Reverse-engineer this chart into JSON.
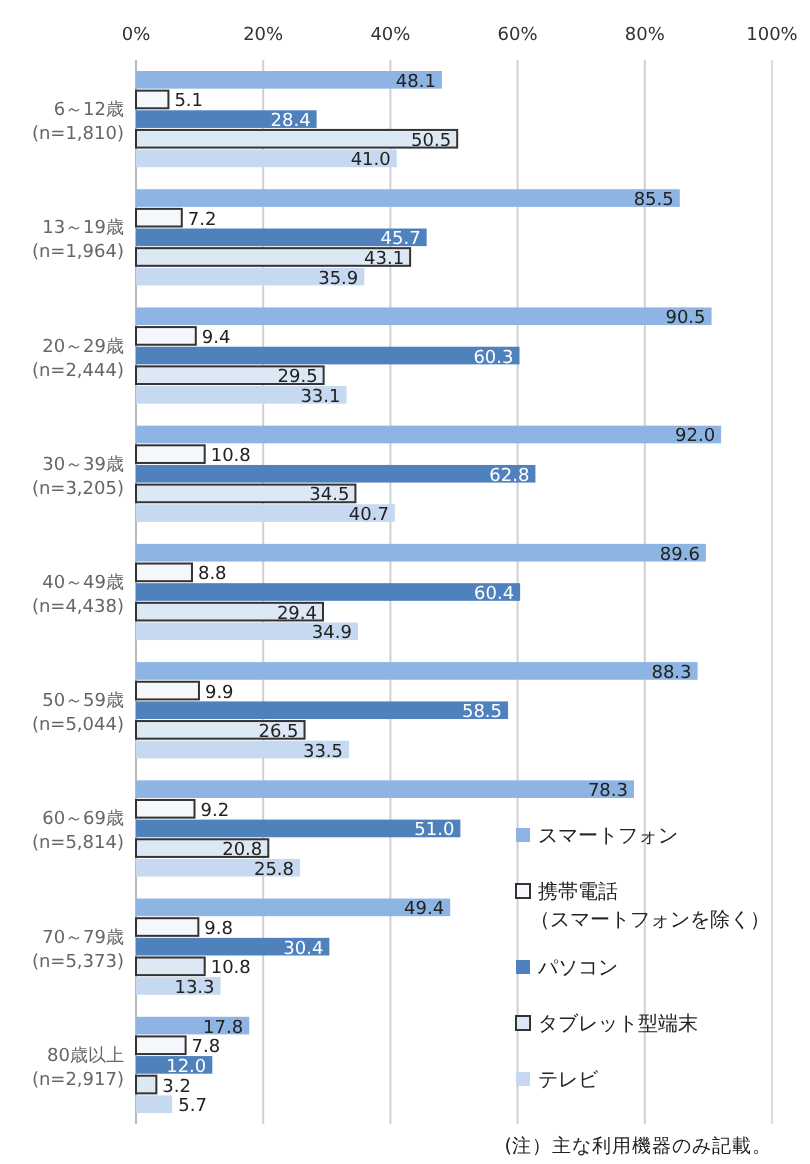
{
  "chart_data": {
    "type": "bar",
    "orientation": "horizontal",
    "categories": [
      "6～12歳\n(n=1,810)",
      "13～19歳\n(n=1,964)",
      "20～29歳\n(n=2,444)",
      "30～39歳\n(n=3,205)",
      "40～49歳\n(n=4,438)",
      "50～59歳\n(n=5,044)",
      "60～69歳\n(n=5,814)",
      "70～79歳\n(n=5,373)",
      "80歳以上\n(n=2,917)"
    ],
    "series": [
      {
        "name": "スマートフォン",
        "color": "#8db4e2",
        "values": [
          48.1,
          85.5,
          90.5,
          92.0,
          89.6,
          88.3,
          78.3,
          49.4,
          17.8
        ],
        "value_labels": [
          "48.1",
          "85.5",
          "90.5",
          "92.0",
          "89.6",
          "88.3",
          "78.3",
          "49.4",
          "17.8"
        ]
      },
      {
        "name": "携帯電話（スマートフォンを除く）",
        "color": "#f4f7fb",
        "values": [
          5.1,
          7.2,
          9.4,
          10.8,
          8.8,
          9.9,
          9.2,
          9.8,
          7.8
        ],
        "value_labels": [
          "5.1",
          "7.2",
          "9.4",
          "10.8",
          "8.8",
          "9.9",
          "9.2",
          "9.8",
          "7.8"
        ]
      },
      {
        "name": "パソコン",
        "color": "#4f81bd",
        "values": [
          28.4,
          45.7,
          60.3,
          62.8,
          60.4,
          58.5,
          51.0,
          30.4,
          12.0
        ],
        "value_labels": [
          "28.4",
          "45.7",
          "60.3",
          "62.8",
          "60.4",
          "58.5",
          "51.0",
          "30.4",
          "12.0"
        ]
      },
      {
        "name": "タブレット型端末",
        "color": "#dde8f5",
        "values": [
          50.5,
          43.1,
          29.5,
          34.5,
          29.4,
          26.5,
          20.8,
          10.8,
          3.2
        ],
        "value_labels": [
          "50.5",
          "43.1",
          "29.5",
          "34.5",
          "29.4",
          "26.5",
          "20.8",
          "10.8",
          "3.2"
        ]
      },
      {
        "name": "テレビ",
        "color": "#c6d9f0",
        "values": [
          41.0,
          35.9,
          33.1,
          40.7,
          34.9,
          33.5,
          25.8,
          13.3,
          5.7
        ],
        "value_labels": [
          "41.0",
          "35.9",
          "33.1",
          "40.7",
          "34.9",
          "33.5",
          "25.8",
          "13.3",
          "5.7"
        ]
      }
    ],
    "xlim": [
      0,
      100
    ],
    "xticks": [
      {
        "value": 0,
        "label": "0%"
      },
      {
        "value": 20,
        "label": "20%"
      },
      {
        "value": 40,
        "label": "40%"
      },
      {
        "value": 60,
        "label": "60%"
      },
      {
        "value": 80,
        "label": "80%"
      },
      {
        "value": 100,
        "label": "100%"
      }
    ],
    "grid": "x",
    "legend": "bottom right",
    "annotations": [
      "(注）主な利用機器のみ記載。"
    ]
  }
}
